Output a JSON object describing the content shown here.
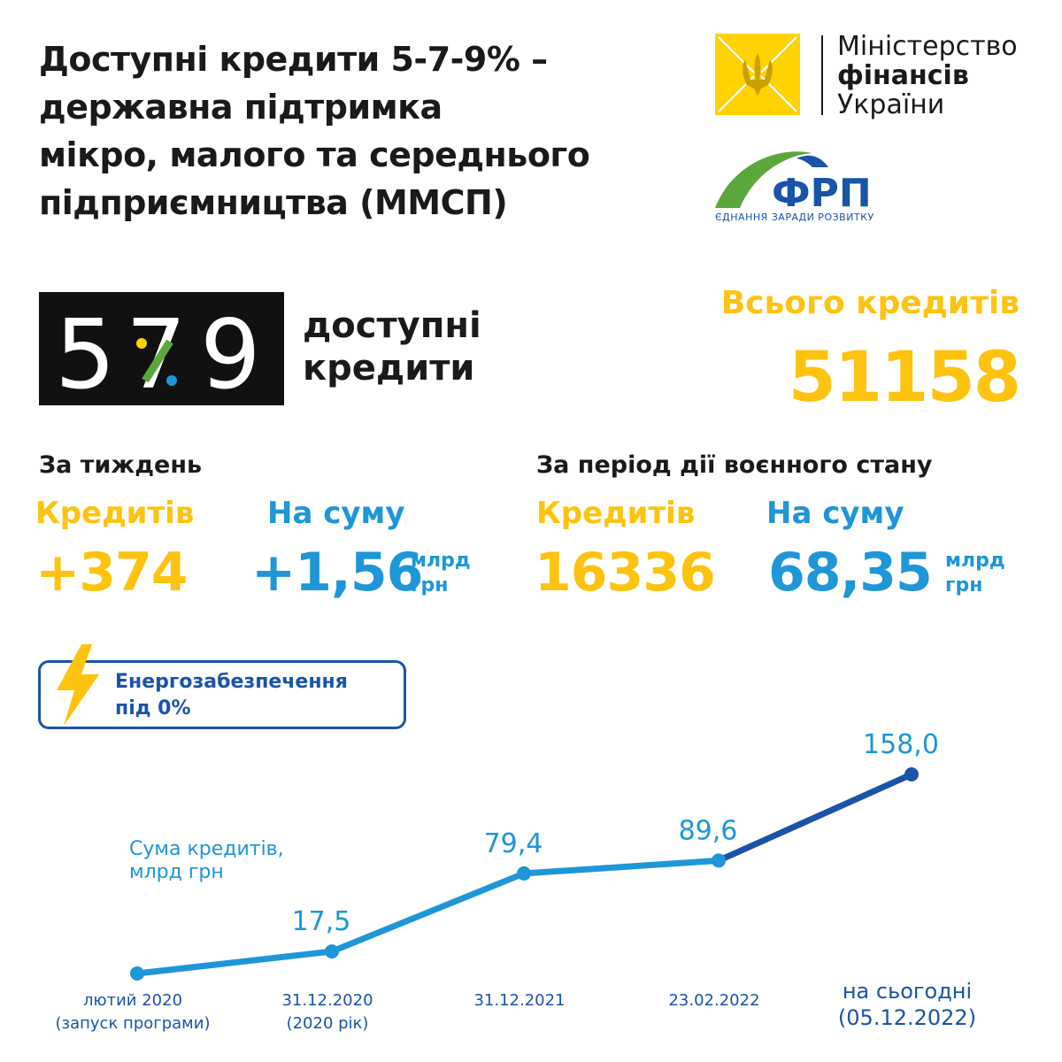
{
  "title": {
    "lines": [
      "Доступні кредити 5-7-9% –",
      "державна підтримка",
      "мікро, малого та середнього",
      "підприємництва (ММСП)"
    ]
  },
  "ministry_logo": {
    "line1": "Міністерство",
    "line2": "фінансів",
    "line3": "України",
    "color": "#ffd200"
  },
  "frp_logo": {
    "name": "ФРП",
    "slogan": "ЄДНАННЯ ЗАРАДИ РОЗВИТКУ"
  },
  "program_logo": {
    "digits": [
      "5",
      "7",
      "9"
    ],
    "label_line1": "доступні",
    "label_line2": "кредити"
  },
  "total": {
    "label": "Всього кредитів",
    "value": "51158"
  },
  "weekly": {
    "heading": "За тиждень",
    "loans_label": "Кредитів",
    "loans_value": "+374",
    "sum_label": "На суму",
    "sum_value": "+1,56",
    "unit_line1": "млрд",
    "unit_line2": "грн"
  },
  "martial_law": {
    "heading": "За період дії воєнного стану",
    "loans_label": "Кредитів",
    "loans_value": "16336",
    "sum_label": "На суму",
    "sum_value": "68,35",
    "unit_line1": "млрд",
    "unit_line2": "грн"
  },
  "energy_badge": {
    "line1": "Енергозабезпечення",
    "line2": "під 0%",
    "icon": "lightning-icon"
  },
  "colors": {
    "accent_yellow": "#ffc20e",
    "accent_blue": "#1e96d8",
    "dark_blue": "#1a54a8",
    "green": "#5aa83c"
  },
  "chart_data": {
    "type": "line",
    "ylabel_line1": "Сума кредитів,",
    "ylabel_line2": "млрд грн",
    "categories": [
      [
        "лютий 2020",
        "(запуск програми)"
      ],
      [
        "31.12.2020",
        "(2020 рік)"
      ],
      [
        "31.12.2021"
      ],
      [
        "23.02.2022"
      ],
      [
        "на сьогодні",
        "(05.12.2022)"
      ]
    ],
    "values": [
      0,
      17.5,
      79.4,
      89.6,
      158.0
    ],
    "data_labels": [
      "",
      "17,5",
      "79,4",
      "89,6",
      "158,0"
    ],
    "ylim": [
      0,
      158
    ],
    "grid": false
  }
}
